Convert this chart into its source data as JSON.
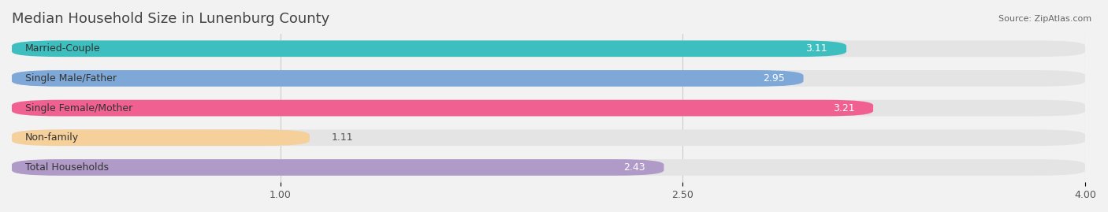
{
  "title": "Median Household Size in Lunenburg County",
  "source": "Source: ZipAtlas.com",
  "categories": [
    "Married-Couple",
    "Single Male/Father",
    "Single Female/Mother",
    "Non-family",
    "Total Households"
  ],
  "values": [
    3.11,
    2.95,
    3.21,
    1.11,
    2.43
  ],
  "bar_colors": [
    "#3dbfbf",
    "#7ea8d8",
    "#f06090",
    "#f5d09a",
    "#b09ac8"
  ],
  "xmin": 0.0,
  "xmax": 4.0,
  "xticks": [
    1.0,
    2.5,
    4.0
  ],
  "bar_height": 0.55,
  "background_color": "#f2f2f2",
  "bar_background_color": "#e4e4e4",
  "title_fontsize": 13,
  "label_fontsize": 9,
  "value_fontsize": 9
}
